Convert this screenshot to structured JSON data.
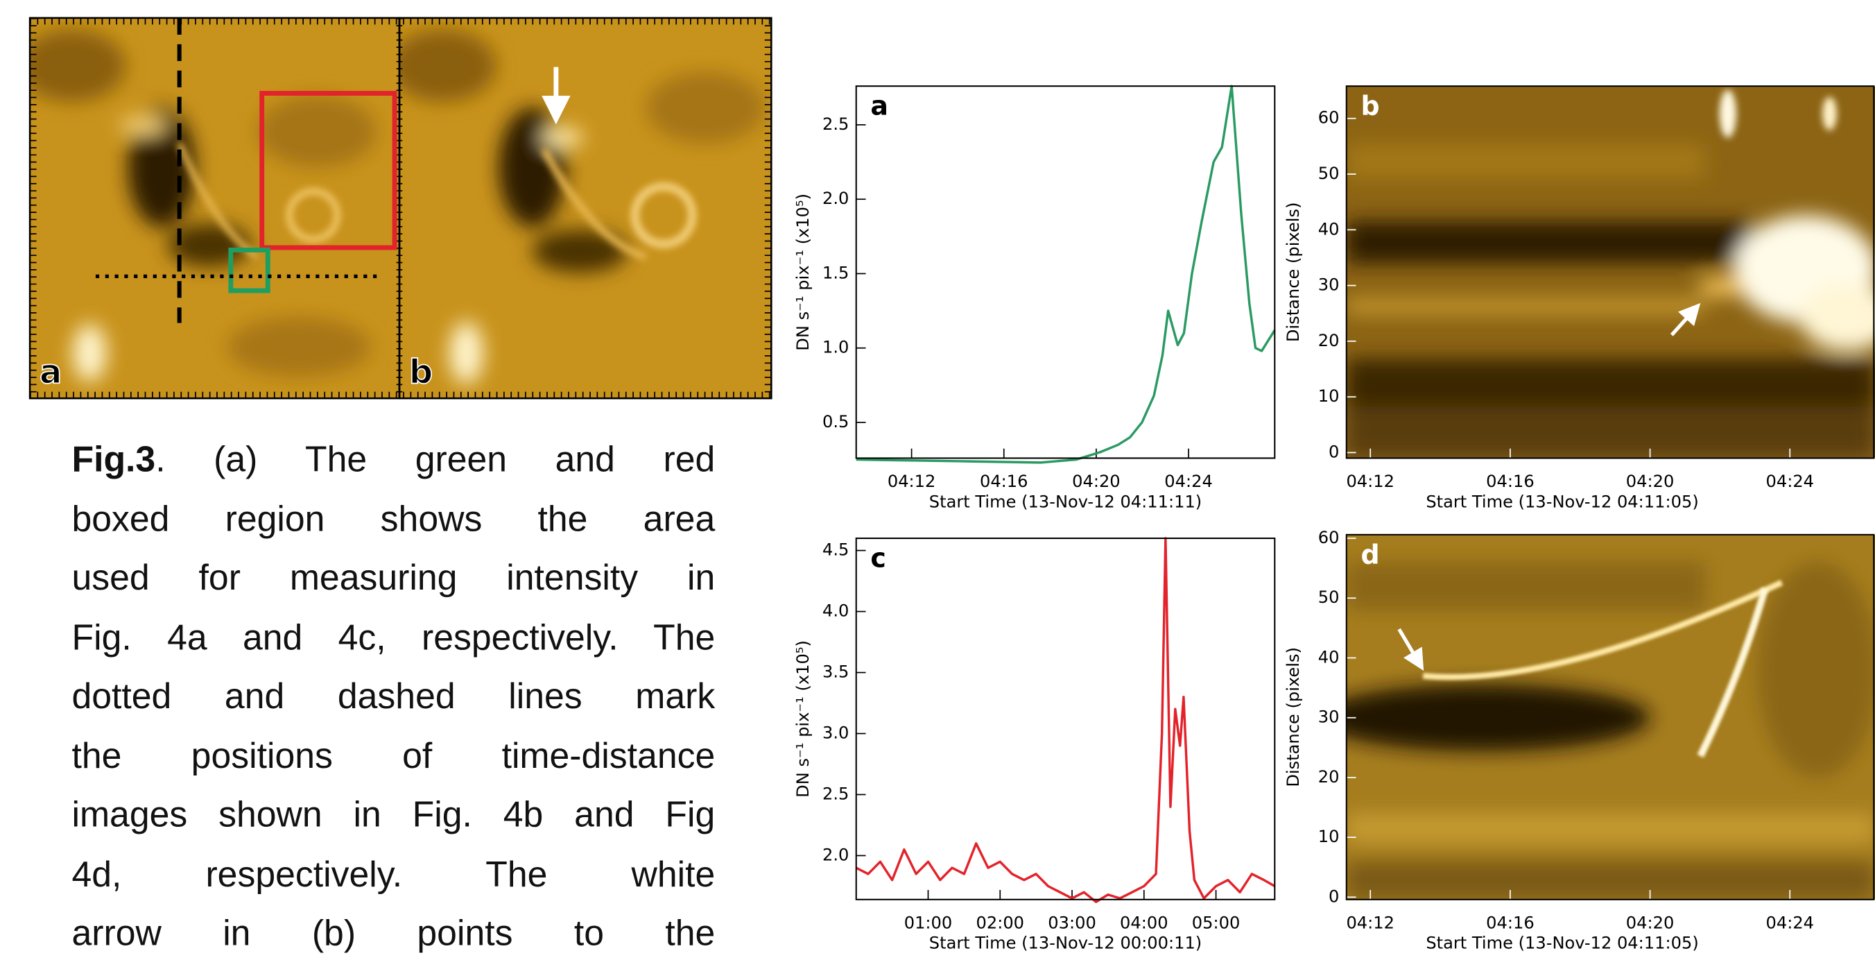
{
  "figure_panels": [
    {
      "label": "a"
    },
    {
      "label": "b"
    }
  ],
  "caption": {
    "label": "Fig.3",
    "lines": [
      ". (a) The green and red",
      "boxed region shows the area",
      "used for measuring intensity in",
      "Fig. 4a and 4c, respectively. The",
      "dotted and dashed lines mark",
      "the positions of time-distance",
      "images shown in Fig. 4b and Fig",
      "4d, respectively. The white",
      "arrow in (b) points to the"
    ]
  },
  "chart_data": [
    {
      "type": "line",
      "panel_label": "a",
      "xlabel": "Start Time (13-Nov-12 04:11:11)",
      "ylabel": "DN s⁻¹ pix⁻¹ (x10⁵)",
      "color": "#2a9a63",
      "x": [
        "04:09:36",
        "04:13:57",
        "04:17:35",
        "04:19:08",
        "04:20:10",
        "04:20:57",
        "04:21:28",
        "04:21:59",
        "04:22:30",
        "04:22:52",
        "04:23:07",
        "04:23:32",
        "04:23:48",
        "04:24:09",
        "04:24:34",
        "04:25:05",
        "04:25:27",
        "04:25:52",
        "04:26:17",
        "04:26:38",
        "04:26:54",
        "04:27:10",
        "04:27:44"
      ],
      "values": [
        0.25,
        0.24,
        0.23,
        0.25,
        0.3,
        0.35,
        0.4,
        0.5,
        0.68,
        0.95,
        1.25,
        1.02,
        1.1,
        1.5,
        1.85,
        2.25,
        2.35,
        2.76,
        1.9,
        1.3,
        1.0,
        0.98,
        1.12
      ],
      "xlim": [
        "04:09:36",
        "04:27:44"
      ],
      "xticks": [
        "04:12",
        "04:16",
        "04:20",
        "04:24"
      ],
      "ylim": [
        0.26,
        2.76
      ],
      "yticks": [
        0.5,
        {
          "value": 1,
          "label": "1.0"
        },
        1.5,
        {
          "value": 2,
          "label": "2.0"
        },
        2.5
      ]
    },
    {
      "type": "image",
      "panel_label": "b",
      "xlabel": "Start Time (13-Nov-12 04:11:05)",
      "ylabel": "Distance (pixels)",
      "xlim": [
        "04:11:19",
        "04:26:24"
      ],
      "xticks": [
        "04:12",
        "04:16",
        "04:20",
        "04:24"
      ],
      "ylim": [
        -1,
        65.8
      ],
      "yticks": [
        0,
        10,
        20,
        30,
        40,
        50,
        60
      ]
    },
    {
      "type": "line",
      "panel_label": "c",
      "xlabel": "Start Time (13-Nov-12 00:00:11)",
      "ylabel": "DN s⁻¹ pix⁻¹ (x10⁵)",
      "color": "#e3232b",
      "x": [
        "00:00",
        "00:10",
        "00:20",
        "00:30",
        "00:40",
        "00:50",
        "01:00",
        "01:10",
        "01:20",
        "01:30",
        "01:40",
        "01:50",
        "02:00",
        "02:10",
        "02:20",
        "02:30",
        "02:40",
        "02:50",
        "03:00",
        "03:10",
        "03:20",
        "03:30",
        "03:40",
        "03:50",
        "04:00",
        "04:10",
        "04:15",
        "04:18",
        "04:22",
        "04:26",
        "04:30",
        "04:33",
        "04:38",
        "04:42",
        "04:50",
        "05:00",
        "05:10",
        "05:20",
        "05:30",
        "05:40",
        "05:49"
      ],
      "values": [
        1.9,
        1.85,
        1.95,
        1.8,
        2.05,
        1.85,
        1.95,
        1.8,
        1.9,
        1.85,
        2.1,
        1.9,
        1.95,
        1.85,
        1.8,
        1.85,
        1.75,
        1.7,
        1.65,
        1.7,
        1.62,
        1.68,
        1.65,
        1.7,
        1.75,
        1.85,
        3.0,
        4.6,
        2.4,
        3.2,
        2.9,
        3.3,
        2.2,
        1.8,
        1.65,
        1.75,
        1.8,
        1.7,
        1.85,
        1.8,
        1.75
      ],
      "xlim": [
        "00:00",
        "05:49"
      ],
      "xticks": [
        "01:00",
        "02:00",
        "03:00",
        "04:00",
        "05:00"
      ],
      "ylim": [
        1.64,
        4.6
      ],
      "yticks": [
        {
          "value": 2,
          "label": "2.0"
        },
        2.5,
        {
          "value": 3,
          "label": "3.0"
        },
        3.5,
        {
          "value": 4,
          "label": "4.0"
        },
        4.5
      ]
    },
    {
      "type": "image",
      "panel_label": "d",
      "xlabel": "Start Time (13-Nov-12 04:11:05)",
      "ylabel": "Distance (pixels)",
      "xlim": [
        "04:11:19",
        "04:26:24"
      ],
      "xticks": [
        "04:12",
        "04:16",
        "04:20",
        "04:24"
      ],
      "ylim": [
        -0.4,
        60.6
      ],
      "yticks": [
        0,
        10,
        20,
        30,
        40,
        50,
        60
      ]
    }
  ]
}
